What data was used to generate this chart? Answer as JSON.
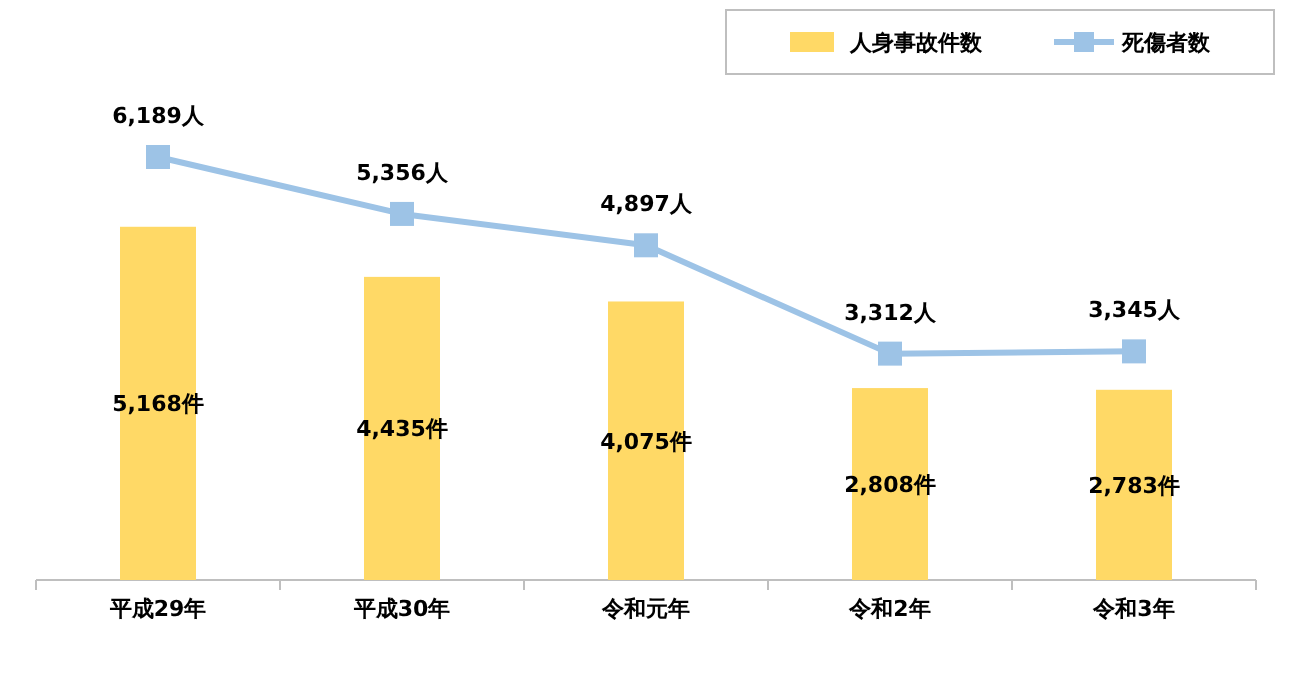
{
  "chart_data": {
    "type": "bar",
    "categories": [
      "平成29年",
      "平成30年",
      "令和元年",
      "令和2年",
      "令和3年"
    ],
    "series": [
      {
        "name": "人身事故件数",
        "color": "#ffd966",
        "values": [
          5168,
          4435,
          4075,
          2808,
          2783
        ],
        "value_labels": [
          "5,168件",
          "4,435件",
          "4,075件",
          "2,808件",
          "2,783件"
        ]
      },
      {
        "name": "死傷者数",
        "type": "line",
        "color": "#9dc3e6",
        "marker": "square",
        "values": [
          6189,
          5356,
          4897,
          3312,
          3345
        ],
        "value_labels": [
          "6,189人",
          "5,356人",
          "4,897人",
          "3,312人",
          "3,345人"
        ]
      }
    ],
    "tick_labels": "x",
    "legend": "top right"
  }
}
